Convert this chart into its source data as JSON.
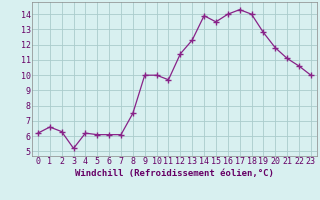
{
  "x": [
    0,
    1,
    2,
    3,
    4,
    5,
    6,
    7,
    8,
    9,
    10,
    11,
    12,
    13,
    14,
    15,
    16,
    17,
    18,
    19,
    20,
    21,
    22,
    23
  ],
  "y": [
    6.2,
    6.6,
    6.3,
    5.2,
    6.2,
    6.1,
    6.1,
    6.1,
    7.5,
    10.0,
    10.0,
    9.7,
    11.4,
    12.3,
    13.9,
    13.5,
    14.0,
    14.3,
    14.0,
    12.8,
    11.8,
    11.1,
    10.6,
    10.0
  ],
  "line_color": "#882288",
  "marker": "+",
  "marker_size": 4,
  "bg_color": "#d8f0f0",
  "grid_color": "#aacccc",
  "xlabel": "Windchill (Refroidissement éolien,°C)",
  "ylabel_ticks": [
    5,
    6,
    7,
    8,
    9,
    10,
    11,
    12,
    13,
    14
  ],
  "xlim": [
    -0.5,
    23.5
  ],
  "ylim": [
    4.7,
    14.8
  ],
  "xlabel_fontsize": 6.5,
  "tick_fontsize": 6,
  "label_color": "#660066"
}
